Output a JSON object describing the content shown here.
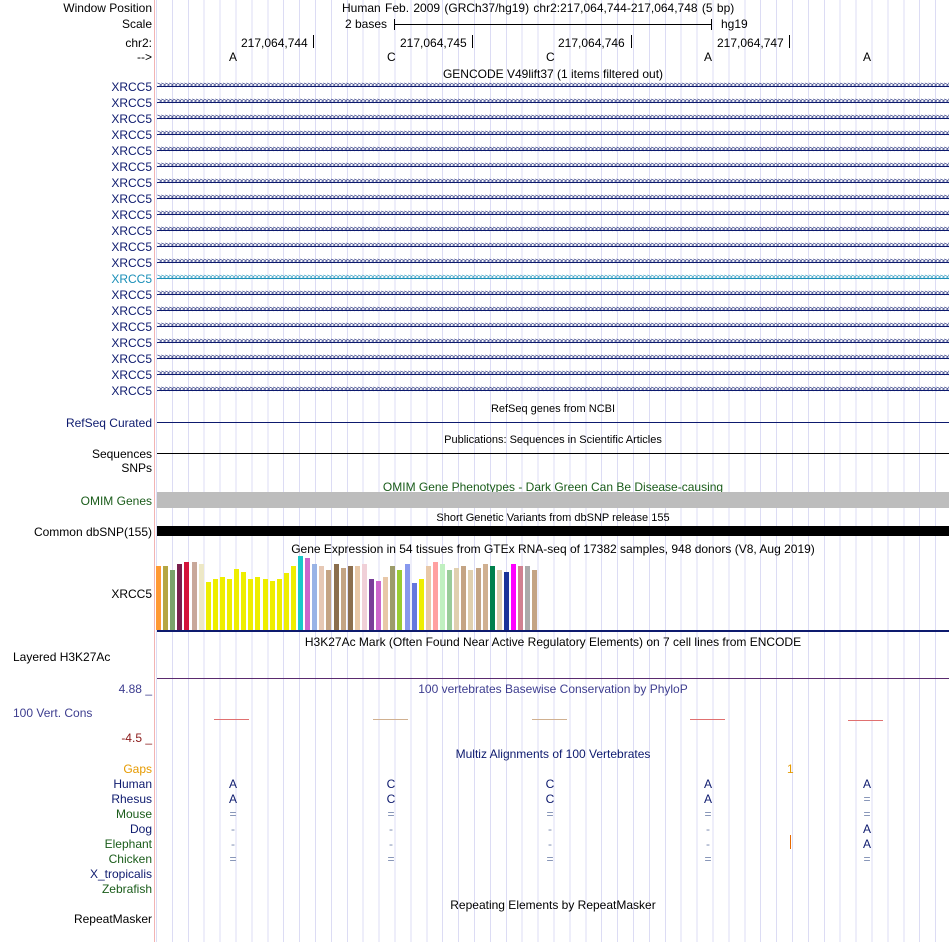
{
  "header": {
    "window_position_label": "Window Position",
    "window_position_value": "Human Feb. 2009 (GRCh37/hg19)   chr2:217,064,744-217,064,748 (5 bp)",
    "scale_label": "Scale",
    "scale_value": "2 bases",
    "assembly": "hg19",
    "chrom_label": "chr2:",
    "strand_label": "-->",
    "coordinates": [
      "217,064,744",
      "217,064,745",
      "217,064,746",
      "217,064,747"
    ],
    "bases": [
      "A",
      "C",
      "C",
      "A",
      "A"
    ]
  },
  "tracks": {
    "gencode": {
      "title": "GENCODE V49lift37 (1 items filtered out)",
      "gene": "XRCC5",
      "rows": [
        "XRCC5",
        "XRCC5",
        "XRCC5",
        "XRCC5",
        "XRCC5",
        "XRCC5",
        "XRCC5",
        "XRCC5",
        "XRCC5",
        "XRCC5",
        "XRCC5",
        "XRCC5",
        "XRCC5",
        "XRCC5",
        "XRCC5",
        "XRCC5",
        "XRCC5",
        "XRCC5",
        "XRCC5",
        "XRCC5"
      ],
      "highlight_row": 12
    },
    "refseq": {
      "title": "RefSeq genes from NCBI",
      "label": "RefSeq Curated"
    },
    "pubs": {
      "title": "Publications: Sequences in Scientific Articles",
      "label": "Sequences"
    },
    "snps": {
      "label": "SNPs"
    },
    "omim": {
      "title": "OMIM Gene Phenotypes - Dark Green Can Be Disease-causing",
      "label": "OMIM Genes"
    },
    "dbsnp": {
      "title": "Short Genetic Variants from dbSNP release 155",
      "label": "Common dbSNP(155)"
    },
    "gtex": {
      "title": "Gene Expression in 54 tissues from GTEx RNA-seq of 17382 samples, 948 donors (V8, Aug 2019)",
      "label": "XRCC5",
      "values": [
        62,
        62,
        58,
        64,
        66,
        66,
        64,
        47,
        50,
        52,
        50,
        59,
        56,
        50,
        52,
        50,
        48,
        50,
        55,
        62,
        72,
        70,
        64,
        62,
        58,
        64,
        60,
        62,
        62,
        64,
        50,
        48,
        52,
        62,
        58,
        64,
        46,
        50,
        62,
        66,
        64,
        58,
        60,
        62,
        58,
        60,
        64,
        62,
        58,
        56,
        64,
        62,
        62,
        58
      ],
      "colors": [
        "#ff9933",
        "#b5a642",
        "#7aa36b",
        "#7a1f4e",
        "#d4143c",
        "#c8a89a",
        "#ede8c6",
        "#eeee00",
        "#eeee00",
        "#eeee00",
        "#eeee00",
        "#eeee00",
        "#eeee00",
        "#eeee00",
        "#eeee00",
        "#eeee00",
        "#eeee00",
        "#eeee00",
        "#eeee00",
        "#eeee00",
        "#1ac9c9",
        "#cc66cc",
        "#99b3e6",
        "#e6c8b5",
        "#c4a484",
        "#8b6e4e",
        "#c4a484",
        "#8b6e4e",
        "#e8c8a8",
        "#f0d0d8",
        "#7a3d99",
        "#cc66cc",
        "#e8c8a8",
        "#9c9c6a",
        "#99cc33",
        "#8899ee",
        "#6677dd",
        "#eeee00",
        "#e8c8a8",
        "#ffa0a0",
        "#c0f0c0",
        "#99cc99",
        "#e0d0b0",
        "#c4a484",
        "#e0d0b0",
        "#c4a484",
        "#d0b090",
        "#00804d",
        "#e0d0b0",
        "#1a3399",
        "#ff00ff",
        "#d08090",
        "#aaaaaa",
        "#c4a484"
      ]
    },
    "h3k27ac": {
      "title": "H3K27Ac Mark (Often Found Near Active Regulatory Elements) on 7 cell lines from ENCODE",
      "label": "Layered H3K27Ac"
    },
    "conservation": {
      "title": "100 vertebrates Basewise Conservation by PhyloP",
      "label": "100 Vert. Cons",
      "max": "4.88 _",
      "min": "-4.5 _"
    },
    "multiz": {
      "title": "Multiz Alignments of 100 Vertebrates",
      "gaps_label": "Gaps",
      "gap_count": "1",
      "species": [
        {
          "name": "Human",
          "bases": [
            "A",
            "C",
            "C",
            "A",
            "A"
          ],
          "color": "#0d1a6e"
        },
        {
          "name": "Rhesus",
          "bases": [
            "A",
            "C",
            "C",
            "A",
            "="
          ],
          "color": "#0d1a6e"
        },
        {
          "name": "Mouse",
          "bases": [
            "=",
            "=",
            "=",
            "=",
            "="
          ],
          "color": "#1a5c1a"
        },
        {
          "name": "Dog",
          "bases": [
            "-",
            "-",
            "-",
            "-",
            "A"
          ],
          "color": "#0d1a6e"
        },
        {
          "name": "Elephant",
          "bases": [
            "-",
            "-",
            "-",
            "-",
            "A"
          ],
          "color": "#1a5c1a"
        },
        {
          "name": "Chicken",
          "bases": [
            "=",
            "=",
            "=",
            "=",
            "="
          ],
          "color": "#1a5c1a"
        },
        {
          "name": "X_tropicalis",
          "bases": [
            "",
            "",
            "",
            "",
            ""
          ],
          "color": "#0d1a6e"
        },
        {
          "name": "Zebrafish",
          "bases": [
            "",
            "",
            "",
            "",
            ""
          ],
          "color": "#1a5c1a"
        }
      ]
    },
    "repeatmasker": {
      "title": "Repeating Elements by RepeatMasker",
      "label": "RepeatMasker"
    }
  }
}
